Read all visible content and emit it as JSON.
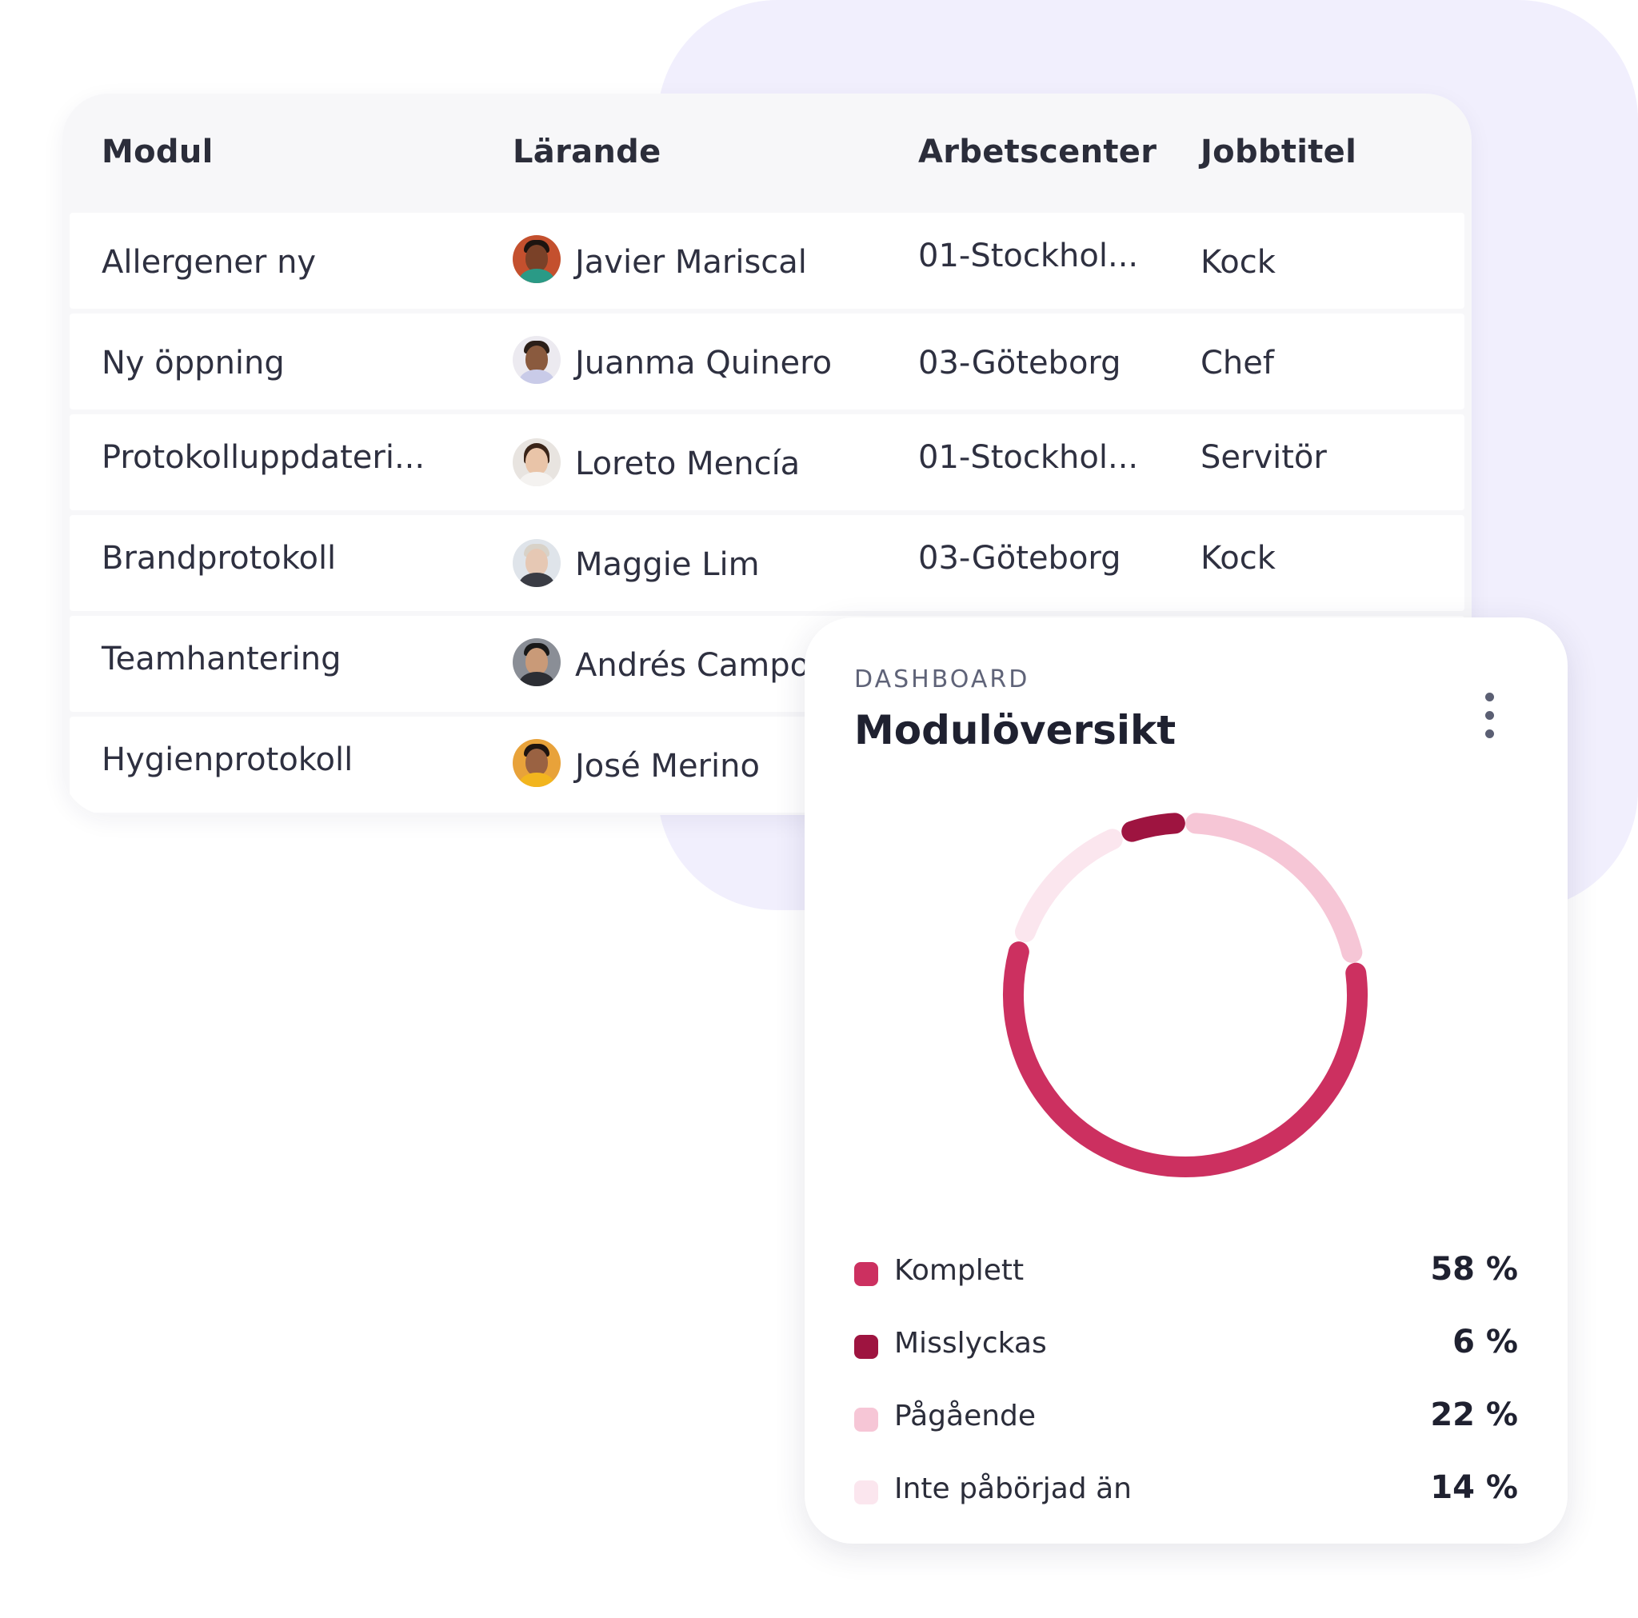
{
  "table": {
    "columns": [
      "Modul",
      "Lärande",
      "Arbetscenter",
      "Jobbtitel"
    ],
    "rows": [
      {
        "module": "Allergener ny",
        "learner": "Javier Mariscal",
        "workcenter": "01-Stockhol...",
        "jobtitle": "Kock"
      },
      {
        "module": "Ny öppning",
        "learner": "Juanma Quinero",
        "workcenter": "03-Göteborg",
        "jobtitle": "Chef"
      },
      {
        "module": "Protokolluppdateri...",
        "learner": "Loreto Mencía",
        "workcenter": "01-Stockhol...",
        "jobtitle": "Servitör"
      },
      {
        "module": "Brandprotokoll",
        "learner": "Maggie Lim",
        "workcenter": "03-Göteborg",
        "jobtitle": "Kock"
      },
      {
        "module": "Teamhantering",
        "learner": "Andrés Campo",
        "workcenter": "",
        "jobtitle": ""
      },
      {
        "module": "Hygienprotokoll",
        "learner": "José Merino",
        "workcenter": "",
        "jobtitle": ""
      }
    ]
  },
  "dashboard": {
    "eyebrow": "DASHBOARD",
    "title": "Modulöversikt",
    "menu_icon": "kebab-icon"
  },
  "chart_data": {
    "type": "pie",
    "variant": "donut",
    "categories": [
      "Komplett",
      "Misslyckas",
      "Pågående",
      "Inte påbörjad än"
    ],
    "values": [
      58,
      6,
      22,
      14
    ],
    "value_labels": [
      "58 %",
      "6 %",
      "22 %",
      "14 %"
    ],
    "colors": [
      "#cc3060",
      "#9e1440",
      "#f6c6d6",
      "#fbe6ee"
    ],
    "legend": "bottom"
  },
  "colors": {
    "background_blob": "#f1effd",
    "table_header_bg": "#f7f7f9",
    "text_primary": "#2b2d3a"
  }
}
